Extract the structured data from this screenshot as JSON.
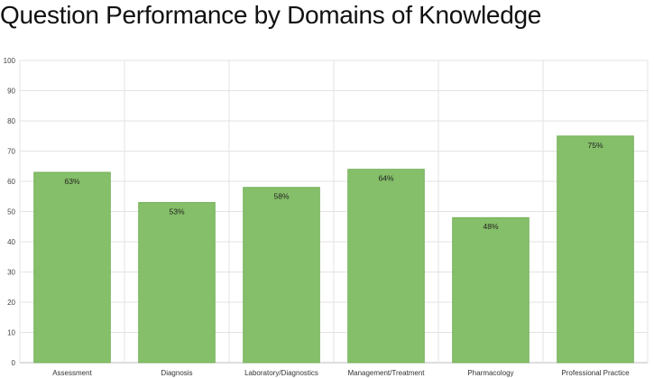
{
  "chart_data": {
    "type": "bar",
    "title": "Question Performance by Domains of Knowledge",
    "xlabel": "",
    "ylabel": "",
    "categories": [
      "Assessment",
      "Diagnosis",
      "Laboratory/Diagnostics",
      "Management/Treatment",
      "Pharmacology",
      "Professional Practice"
    ],
    "values": [
      63,
      53,
      58,
      64,
      48,
      75
    ],
    "data_labels": [
      "63%",
      "53%",
      "58%",
      "64%",
      "48%",
      "75%"
    ],
    "ylim": [
      0,
      100
    ],
    "yticks": [
      "0",
      "10",
      "20",
      "30",
      "40",
      "50",
      "60",
      "70",
      "80",
      "90",
      "100"
    ],
    "bar_color": "#85bf69",
    "bar_border_color": "#6aa94f",
    "grid": true,
    "legend": "none"
  }
}
